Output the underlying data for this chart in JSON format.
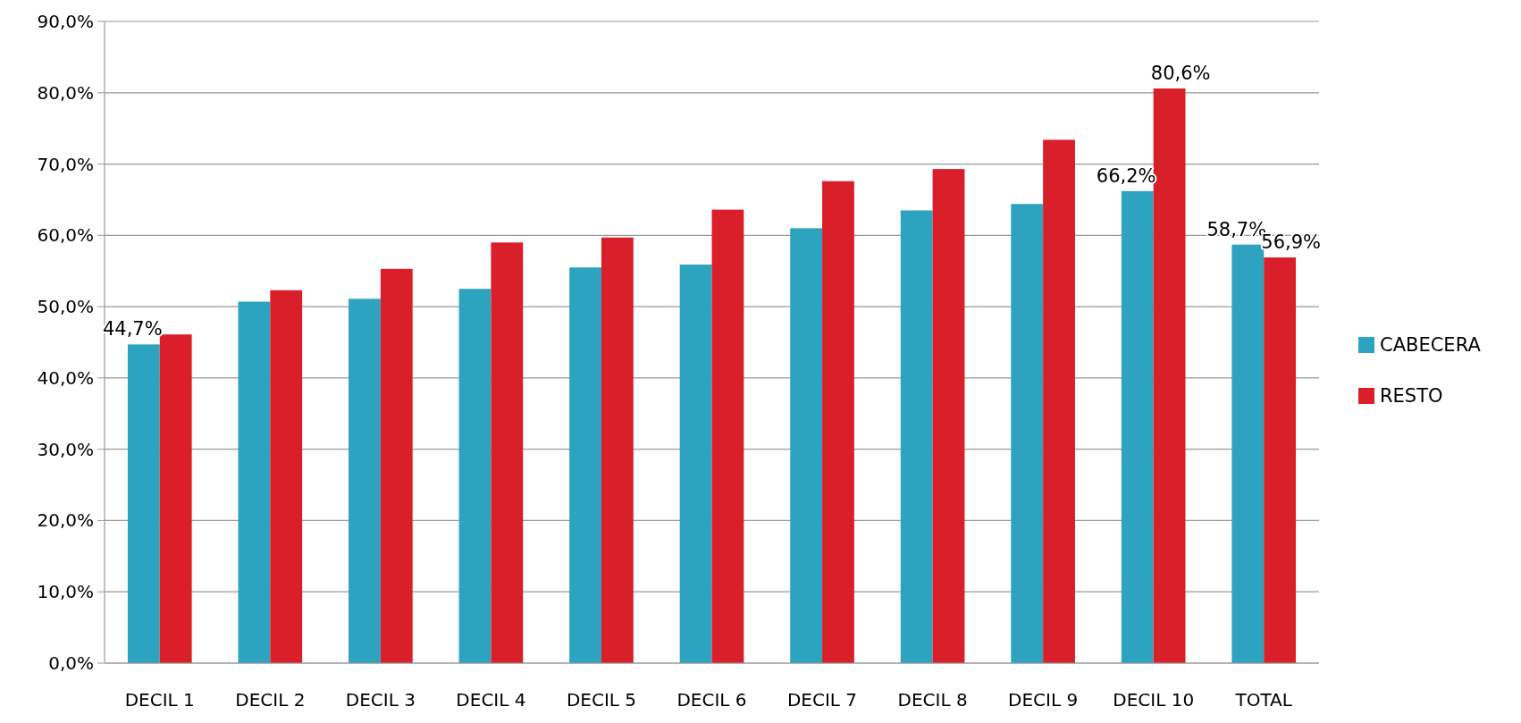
{
  "chart_data": {
    "type": "bar",
    "categories": [
      "DECIL 1",
      "DECIL 2",
      "DECIL 3",
      "DECIL 4",
      "DECIL 5",
      "DECIL 6",
      "DECIL 7",
      "DECIL 8",
      "DECIL 9",
      "DECIL 10",
      "TOTAL"
    ],
    "series": [
      {
        "name": "CABECERA",
        "color": "#2ea3bf",
        "values": [
          44.7,
          50.7,
          51.1,
          52.5,
          55.5,
          55.9,
          61.0,
          63.5,
          64.4,
          66.2,
          58.7
        ],
        "value_labels": [
          "44,7%",
          null,
          null,
          null,
          null,
          null,
          null,
          null,
          null,
          "66,2%",
          "58,7%"
        ]
      },
      {
        "name": "RESTO",
        "color": "#d9202a",
        "values": [
          46.1,
          52.3,
          55.3,
          59.0,
          59.7,
          63.6,
          67.6,
          69.3,
          73.4,
          80.6,
          56.9
        ],
        "value_labels": [
          null,
          null,
          null,
          null,
          null,
          null,
          null,
          null,
          null,
          "80,6%",
          "56,9%"
        ]
      }
    ],
    "ylim": [
      0,
      90
    ],
    "yticks": [
      {
        "value": 0,
        "label": "0,0%"
      },
      {
        "value": 10,
        "label": "10,0%"
      },
      {
        "value": 20,
        "label": "20,0%"
      },
      {
        "value": 30,
        "label": "30,0%"
      },
      {
        "value": 40,
        "label": "40,0%"
      },
      {
        "value": 50,
        "label": "50,0%"
      },
      {
        "value": 60,
        "label": "60,0%"
      },
      {
        "value": 70,
        "label": "70,0%"
      },
      {
        "value": 80,
        "label": "80,0%"
      },
      {
        "value": 90,
        "label": "90,0%"
      }
    ],
    "grid": "y",
    "legend": "right"
  }
}
